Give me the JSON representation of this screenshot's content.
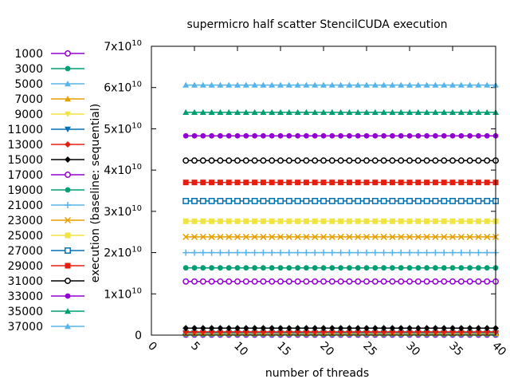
{
  "chart_data": {
    "type": "line",
    "title": "supermicro half scatter StencilCUDA execution",
    "xlabel": "number of threads",
    "ylabel": "execution (baseline: sequential)",
    "xlim": [
      0,
      40
    ],
    "ylim": [
      0,
      70000000000
    ],
    "x_ticks": [
      "0",
      "5",
      "10",
      "15",
      "20",
      "25",
      "30",
      "35",
      "40"
    ],
    "y_ticks": [
      {
        "value": 0,
        "label": "0",
        "mantissa": "",
        "exp": ""
      },
      {
        "value": 10000000000,
        "label": "1x10^10",
        "mantissa": "1x10",
        "exp": "10"
      },
      {
        "value": 20000000000,
        "label": "2x10^10",
        "mantissa": "2x10",
        "exp": "10"
      },
      {
        "value": 30000000000,
        "label": "3x10^10",
        "mantissa": "3x10",
        "exp": "10"
      },
      {
        "value": 40000000000,
        "label": "4x10^10",
        "mantissa": "4x10",
        "exp": "10"
      },
      {
        "value": 50000000000,
        "label": "5x10^10",
        "mantissa": "5x10",
        "exp": "10"
      },
      {
        "value": 60000000000,
        "label": "6x10^10",
        "mantissa": "6x10",
        "exp": "10"
      },
      {
        "value": 70000000000,
        "label": "7x10^10",
        "mantissa": "7x10",
        "exp": "10"
      }
    ],
    "x": [
      4,
      5,
      6,
      7,
      8,
      9,
      10,
      11,
      12,
      13,
      14,
      15,
      16,
      17,
      18,
      19,
      20,
      21,
      22,
      23,
      24,
      25,
      26,
      27,
      28,
      29,
      30,
      31,
      32,
      33,
      34,
      35,
      36,
      37,
      38,
      39,
      40
    ],
    "grid": false,
    "legend_position": "left",
    "series": [
      {
        "name": "1000",
        "value": 100000000,
        "color": "#9400d3",
        "marker": "circle-open"
      },
      {
        "name": "3000",
        "value": 200000000,
        "color": "#009e73",
        "marker": "circle"
      },
      {
        "name": "5000",
        "value": 300000000,
        "color": "#56b4e9",
        "marker": "triangle"
      },
      {
        "name": "7000",
        "value": 400000000,
        "color": "#e69f00",
        "marker": "triangle"
      },
      {
        "name": "9000",
        "value": 500000000,
        "color": "#f0e442",
        "marker": "triangle-down"
      },
      {
        "name": "11000",
        "value": 600000000,
        "color": "#0072b2",
        "marker": "triangle-down"
      },
      {
        "name": "13000",
        "value": 800000000,
        "color": "#e51e10",
        "marker": "diamond"
      },
      {
        "name": "15000",
        "value": 1700000000,
        "color": "#000000",
        "marker": "diamond"
      },
      {
        "name": "17000",
        "value": 13000000000,
        "color": "#9400d3",
        "marker": "circle-open"
      },
      {
        "name": "19000",
        "value": 16300000000,
        "color": "#009e73",
        "marker": "circle"
      },
      {
        "name": "21000",
        "value": 20000000000,
        "color": "#56b4e9",
        "marker": "plus"
      },
      {
        "name": "23000",
        "value": 23800000000,
        "color": "#e69f00",
        "marker": "cross"
      },
      {
        "name": "25000",
        "value": 27600000000,
        "color": "#f0e442",
        "marker": "square"
      },
      {
        "name": "27000",
        "value": 32500000000,
        "color": "#0072b2",
        "marker": "square-open"
      },
      {
        "name": "29000",
        "value": 37000000000,
        "color": "#e51e10",
        "marker": "square"
      },
      {
        "name": "31000",
        "value": 42300000000,
        "color": "#000000",
        "marker": "circle-open"
      },
      {
        "name": "33000",
        "value": 48300000000,
        "color": "#9400d3",
        "marker": "circle"
      },
      {
        "name": "35000",
        "value": 54000000000,
        "color": "#009e73",
        "marker": "triangle"
      },
      {
        "name": "37000",
        "value": 60600000000,
        "color": "#56b4e9",
        "marker": "triangle"
      }
    ]
  }
}
